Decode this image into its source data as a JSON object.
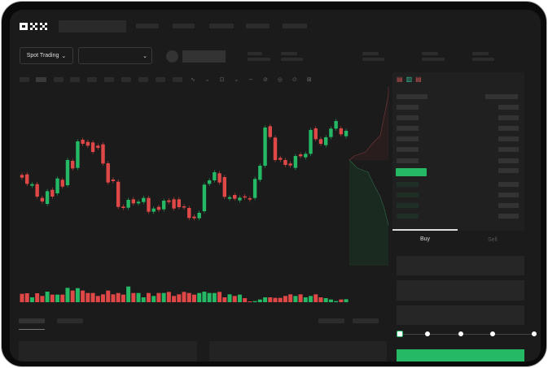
{
  "header": {
    "logo": "OKX"
  },
  "market": {
    "mode_label": "Spot Trading"
  },
  "order_form": {
    "tabs": [
      {
        "label": "Buy",
        "active": true
      },
      {
        "label": "Sell",
        "active": false
      }
    ],
    "slider_steps": 5,
    "slider_value_percent": 0
  },
  "colors": {
    "up": "#25b865",
    "down": "#e04848",
    "background": "#1b1b1b"
  },
  "chart_data": {
    "type": "candlestick",
    "candles": [
      [
        "d",
        350,
        340
      ],
      [
        "d",
        352,
        317
      ],
      [
        "u",
        310,
        316
      ],
      [
        "d",
        316,
        270
      ],
      [
        "d",
        265,
        252
      ],
      [
        "u",
        243,
        290
      ],
      [
        "d",
        295,
        270
      ],
      [
        "u",
        282,
        337
      ],
      [
        "d",
        332,
        307
      ],
      [
        "u",
        312,
        405
      ],
      [
        "d",
        402,
        374
      ],
      [
        "u",
        376,
        474
      ],
      [
        "d",
        480,
        465
      ],
      [
        "d",
        472,
        458
      ],
      [
        "d",
        470,
        435
      ],
      [
        "d",
        458,
        450
      ],
      [
        "d",
        463,
        392
      ],
      [
        "d",
        393,
        322
      ],
      [
        "d",
        333,
        327
      ],
      [
        "d",
        325,
        232
      ],
      [
        "d",
        233,
        228
      ],
      [
        "u",
        229,
        258
      ],
      [
        "d",
        260,
        245
      ],
      [
        "u",
        245,
        251
      ],
      [
        "u",
        250,
        265
      ],
      [
        "d",
        265,
        214
      ],
      [
        "u",
        214,
        226
      ],
      [
        "d",
        232,
        221
      ],
      [
        "u",
        223,
        255
      ],
      [
        "d",
        256,
        250
      ],
      [
        "d",
        260,
        226
      ],
      [
        "d",
        260,
        231
      ],
      [
        "d",
        234,
        230
      ],
      [
        "d",
        228,
        191
      ],
      [
        "d",
        196,
        190
      ],
      [
        "u",
        190,
        210
      ],
      [
        "u",
        216,
        314
      ],
      [
        "u",
        317,
        330
      ],
      [
        "u",
        330,
        360
      ],
      [
        "d",
        356,
        322
      ],
      [
        "d",
        342,
        269
      ],
      [
        "u",
        262,
        268
      ],
      [
        "d",
        276,
        262
      ],
      [
        "u",
        256,
        266
      ],
      [
        "d",
        271,
        267
      ],
      [
        "d",
        264,
        259
      ],
      [
        "u",
        265,
        335
      ],
      [
        "u",
        332,
        384
      ],
      [
        "u",
        384,
        525
      ],
      [
        "d",
        530,
        490
      ],
      [
        "d",
        488,
        405
      ],
      [
        "d",
        413,
        406
      ],
      [
        "d",
        405,
        387
      ],
      [
        "d",
        392,
        385
      ],
      [
        "u",
        376,
        420
      ],
      [
        "d",
        426,
        419
      ],
      [
        "u",
        415,
        428
      ],
      [
        "u",
        428,
        516
      ],
      [
        "d",
        522,
        482
      ],
      [
        "d",
        482,
        465
      ],
      [
        "u",
        460,
        489
      ],
      [
        "u",
        490,
        521
      ],
      [
        "u",
        521,
        549
      ],
      [
        "d",
        522,
        500
      ],
      [
        "u",
        493,
        513
      ]
    ],
    "volumes": [
      40,
      42,
      27,
      42,
      32,
      48,
      37,
      37,
      37,
      62,
      52,
      61,
      52,
      43,
      43,
      32,
      38,
      52,
      38,
      43,
      37,
      67,
      43,
      43,
      27,
      43,
      32,
      43,
      43,
      47,
      32,
      38,
      47,
      43,
      37,
      43,
      48,
      43,
      43,
      47,
      27,
      38,
      32,
      37,
      24,
      12,
      13,
      19,
      27,
      27,
      25,
      25,
      32,
      38,
      32,
      38,
      27,
      32,
      38,
      27,
      24,
      19,
      13,
      19,
      20
    ]
  }
}
